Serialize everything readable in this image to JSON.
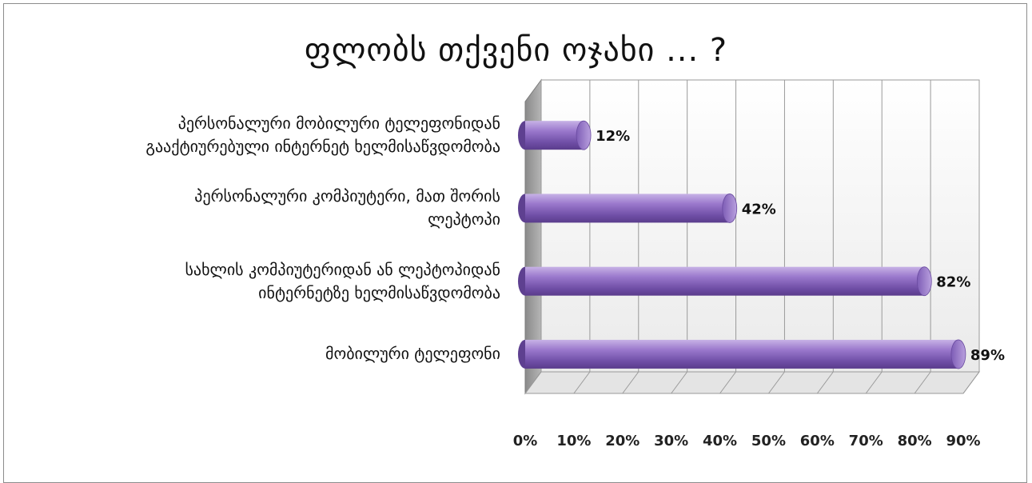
{
  "chart_data": {
    "type": "bar",
    "orientation": "horizontal",
    "title": "ფლობს თქვენი ოჯახი ... ?",
    "categories": [
      "პერსონალური მობილური ტელეფონიდან\nგააქტიურებული ინტერნეტ ხელმისაწვდომობა",
      "პერსონალური კომპიუტერი, მათ შორის\nლეპტოპი",
      "სახლის კომპიუტერიდან ან ლეპტოპიდან\nინტერნეტზე ხელმისაწვდომობა",
      "მობილური ტელეფონი"
    ],
    "values": [
      12,
      42,
      82,
      89
    ],
    "data_labels": [
      "12%",
      "42%",
      "82%",
      "89%"
    ],
    "xlim": [
      0,
      90
    ],
    "x_ticks": [
      "0%",
      "10%",
      "20%",
      "30%",
      "40%",
      "50%",
      "60%",
      "70%",
      "80%",
      "90%"
    ],
    "grid": true,
    "legend": "none",
    "bar_color": "#8e6cc0"
  }
}
